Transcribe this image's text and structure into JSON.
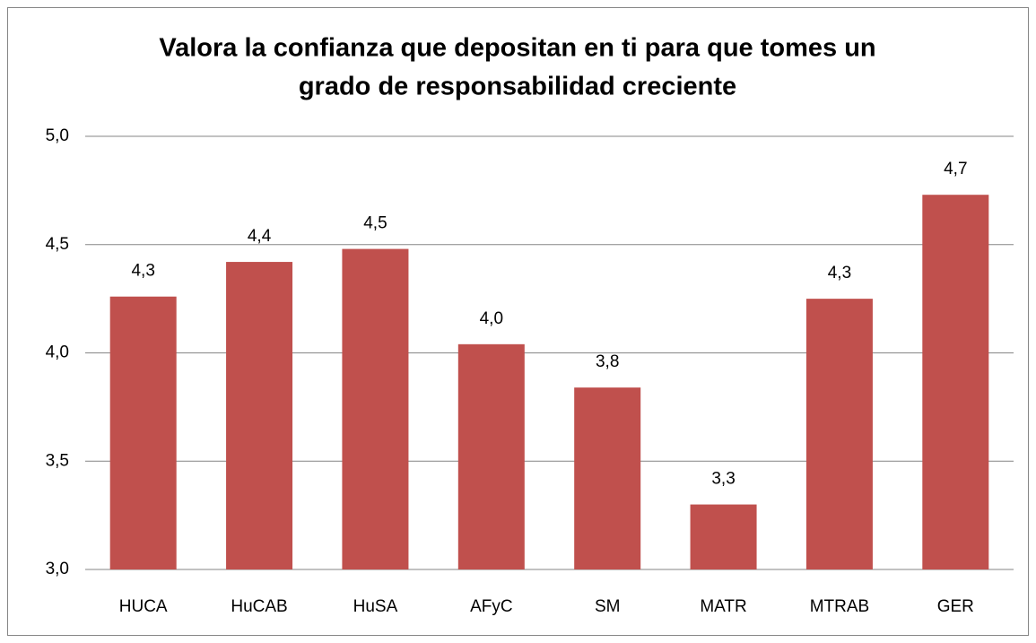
{
  "chart_data": {
    "type": "bar",
    "title": [
      "Valora la confianza que depositan en ti para que tomes un",
      "grado de responsabilidad creciente"
    ],
    "categories": [
      "HUCA",
      "HuCAB",
      "HuSA",
      "AFyC",
      "SM",
      "MATR",
      "MTRAB",
      "GER"
    ],
    "values": [
      4.26,
      4.42,
      4.48,
      4.04,
      3.84,
      3.3,
      4.25,
      4.73
    ],
    "value_labels": [
      "4,3",
      "4,4",
      "4,5",
      "4,0",
      "3,8",
      "3,3",
      "4,3",
      "4,7"
    ],
    "color": "#c0504d",
    "ylim": [
      3,
      5
    ],
    "yticks": [
      {
        "value": 3,
        "label": "3,0"
      },
      {
        "value": 3.5,
        "label": "3,5"
      },
      {
        "value": 4,
        "label": "4,0"
      },
      {
        "value": 4.5,
        "label": "4,5"
      },
      {
        "value": 5,
        "label": "5,0"
      }
    ],
    "grid": true
  }
}
